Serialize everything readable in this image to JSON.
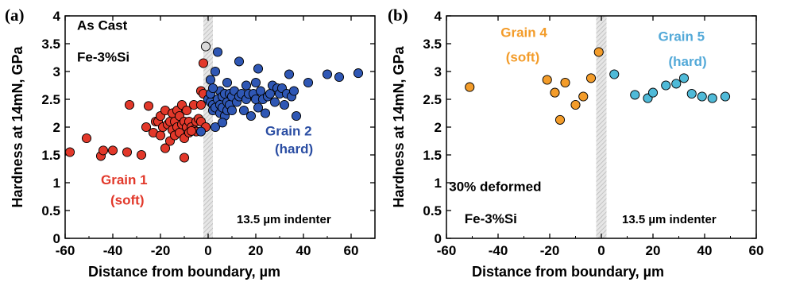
{
  "chart_data": [
    {
      "type": "scatter",
      "panel_label": "(a)",
      "xlabel": "Distance from boundary, µm",
      "ylabel": "Hardness at 14mN, GPa",
      "xlim": [
        -60,
        70
      ],
      "ylim": [
        0,
        4
      ],
      "xticks": [
        "-60",
        "-40",
        "-20",
        "0",
        "20",
        "40",
        "60"
      ],
      "yticks": [
        "0",
        "0.5",
        "1",
        "1.5",
        "2",
        "2.5",
        "3",
        "3.5",
        "4"
      ],
      "grid": false,
      "boundary_band": [
        -2,
        2
      ],
      "annotations": [
        {
          "text": "As Cast",
          "x": -55,
          "y": 3.75,
          "color": "#000000"
        },
        {
          "text": "Fe-3%Si",
          "x": -55,
          "y": 3.18,
          "color": "#000000"
        },
        {
          "text": "Grain 2",
          "x": 24,
          "y": 1.85,
          "color": "#2b4ea3"
        },
        {
          "text": "(hard)",
          "x": 28,
          "y": 1.53,
          "color": "#2b4ea3"
        },
        {
          "text": "Grain 1",
          "x": -45,
          "y": 0.97,
          "color": "#e2382a"
        },
        {
          "text": "(soft)",
          "x": -41,
          "y": 0.61,
          "color": "#e2382a"
        },
        {
          "text": "13.5 µm indenter",
          "x": 12,
          "y": 0.27,
          "color": "#000000"
        }
      ],
      "series": [
        {
          "color": "#e2382a",
          "points": [
            [
              -58,
              1.55
            ],
            [
              -51,
              1.8
            ],
            [
              -45,
              1.48
            ],
            [
              -44,
              1.58
            ],
            [
              -40,
              1.58
            ],
            [
              -34,
              1.55
            ],
            [
              -33,
              2.4
            ],
            [
              -28,
              1.5
            ],
            [
              -26,
              2.0
            ],
            [
              -25,
              2.38
            ],
            [
              -23,
              1.9
            ],
            [
              -22,
              2.1
            ],
            [
              -21,
              2.1
            ],
            [
              -20,
              1.85
            ],
            [
              -20,
              2.2
            ],
            [
              -19,
              2.0
            ],
            [
              -18,
              1.62
            ],
            [
              -18,
              2.3
            ],
            [
              -17,
              2.05
            ],
            [
              -16,
              2.1
            ],
            [
              -16,
              1.75
            ],
            [
              -15,
              2.25
            ],
            [
              -15,
              1.95
            ],
            [
              -14,
              2.1
            ],
            [
              -14,
              1.85
            ],
            [
              -13,
              2.3
            ],
            [
              -13,
              2.0
            ],
            [
              -12,
              2.2
            ],
            [
              -12,
              1.9
            ],
            [
              -11,
              2.05
            ],
            [
              -11,
              2.4
            ],
            [
              -10,
              2.1
            ],
            [
              -10,
              1.8
            ],
            [
              -10,
              1.45
            ],
            [
              -9,
              2.3
            ],
            [
              -9,
              2.0
            ],
            [
              -8,
              2.1
            ],
            [
              -8,
              1.9
            ],
            [
              -7,
              2.0
            ],
            [
              -6,
              2.4
            ],
            [
              -6,
              1.95
            ],
            [
              -5,
              2.1
            ],
            [
              -5,
              1.92
            ],
            [
              -4,
              2.15
            ],
            [
              -3,
              2.1
            ],
            [
              -3,
              2.4
            ],
            [
              -3,
              2.65
            ],
            [
              -2,
              2.6
            ],
            [
              -2,
              3.15
            ],
            [
              -1,
              2.0
            ],
            [
              -7,
              1.93
            ]
          ]
        },
        {
          "color": "#2f57b4",
          "points": [
            [
              0,
              2.5
            ],
            [
              1,
              2.45
            ],
            [
              1,
              2.85
            ],
            [
              1,
              2.6
            ],
            [
              2,
              2.4
            ],
            [
              2,
              2.3
            ],
            [
              3,
              2.35
            ],
            [
              3,
              2.0
            ],
            [
              3,
              3.0
            ],
            [
              4,
              2.5
            ],
            [
              4,
              3.35
            ],
            [
              5,
              2.25
            ],
            [
              5,
              2.4
            ],
            [
              5,
              2.65
            ],
            [
              6,
              2.55
            ],
            [
              6,
              2.35
            ],
            [
              7,
              2.6
            ],
            [
              7,
              2.2
            ],
            [
              8,
              2.3
            ],
            [
              8,
              2.8
            ],
            [
              8,
              2.45
            ],
            [
              9,
              2.6
            ],
            [
              9,
              2.4
            ],
            [
              10,
              2.55
            ],
            [
              10,
              2.3
            ],
            [
              11,
              2.65
            ],
            [
              12,
              2.45
            ],
            [
              13,
              2.55
            ],
            [
              13,
              3.18
            ],
            [
              14,
              2.6
            ],
            [
              15,
              2.3
            ],
            [
              16,
              2.5
            ],
            [
              16,
              2.75
            ],
            [
              17,
              2.6
            ],
            [
              18,
              2.2
            ],
            [
              19,
              2.6
            ],
            [
              20,
              2.8
            ],
            [
              20,
              2.5
            ],
            [
              21,
              3.05
            ],
            [
              21,
              2.35
            ],
            [
              22,
              2.65
            ],
            [
              23,
              2.5
            ],
            [
              24,
              2.25
            ],
            [
              25,
              2.55
            ],
            [
              26,
              2.6
            ],
            [
              27,
              2.75
            ],
            [
              28,
              2.45
            ],
            [
              29,
              2.7
            ],
            [
              30,
              2.6
            ],
            [
              31,
              2.7
            ],
            [
              32,
              2.4
            ],
            [
              33,
              2.6
            ],
            [
              34,
              2.95
            ],
            [
              35,
              2.55
            ],
            [
              36,
              2.65
            ],
            [
              37,
              2.2
            ],
            [
              42,
              2.8
            ],
            [
              50,
              2.95
            ],
            [
              55,
              2.9
            ],
            [
              63,
              2.97
            ],
            [
              2,
              2.7
            ],
            [
              -3,
              1.92
            ],
            [
              6,
              2.08
            ]
          ]
        },
        {
          "color": "#dadada",
          "points": [
            [
              -1,
              3.45
            ]
          ]
        }
      ]
    },
    {
      "type": "scatter",
      "panel_label": "(b)",
      "xlabel": "Distance from boundary, µm",
      "ylabel": "Hardness at 14mN, GPa",
      "xlim": [
        -60,
        60
      ],
      "ylim": [
        0,
        4
      ],
      "xticks": [
        "-60",
        "-40",
        "-20",
        "0",
        "20",
        "40",
        "60"
      ],
      "yticks": [
        "0",
        "0.5",
        "1",
        "1.5",
        "2",
        "2.5",
        "3",
        "3.5",
        "4"
      ],
      "grid": false,
      "boundary_band": [
        -2,
        2
      ],
      "annotations": [
        {
          "text": "Grain 4",
          "x": -39,
          "y": 3.62,
          "color": "#f39c2a"
        },
        {
          "text": "(soft)",
          "x": -37,
          "y": 3.18,
          "color": "#f39c2a"
        },
        {
          "text": "Grain 5",
          "x": 22,
          "y": 3.55,
          "color": "#53a9d8"
        },
        {
          "text": "(hard)",
          "x": 26,
          "y": 3.1,
          "color": "#53a9d8"
        },
        {
          "text": "30% deformed",
          "x": -59,
          "y": 0.85,
          "color": "#000000"
        },
        {
          "text": "Fe-3%Si",
          "x": -53,
          "y": 0.27,
          "color": "#000000"
        },
        {
          "text": "13.5 µm indenter",
          "x": 8,
          "y": 0.27,
          "color": "#000000"
        }
      ],
      "series": [
        {
          "color": "#f39c2a",
          "points": [
            [
              -51,
              2.72
            ],
            [
              -21,
              2.85
            ],
            [
              -18,
              2.62
            ],
            [
              -16,
              2.13
            ],
            [
              -14,
              2.8
            ],
            [
              -10,
              2.4
            ],
            [
              -7,
              2.55
            ],
            [
              -4,
              2.88
            ],
            [
              -1,
              3.35
            ]
          ]
        },
        {
          "color": "#4fbad8",
          "points": [
            [
              5,
              2.95
            ],
            [
              13,
              2.58
            ],
            [
              18,
              2.52
            ],
            [
              20,
              2.62
            ],
            [
              25,
              2.75
            ],
            [
              29,
              2.78
            ],
            [
              32,
              2.88
            ],
            [
              35,
              2.6
            ],
            [
              39,
              2.55
            ],
            [
              43,
              2.52
            ],
            [
              48,
              2.55
            ]
          ]
        }
      ]
    }
  ]
}
